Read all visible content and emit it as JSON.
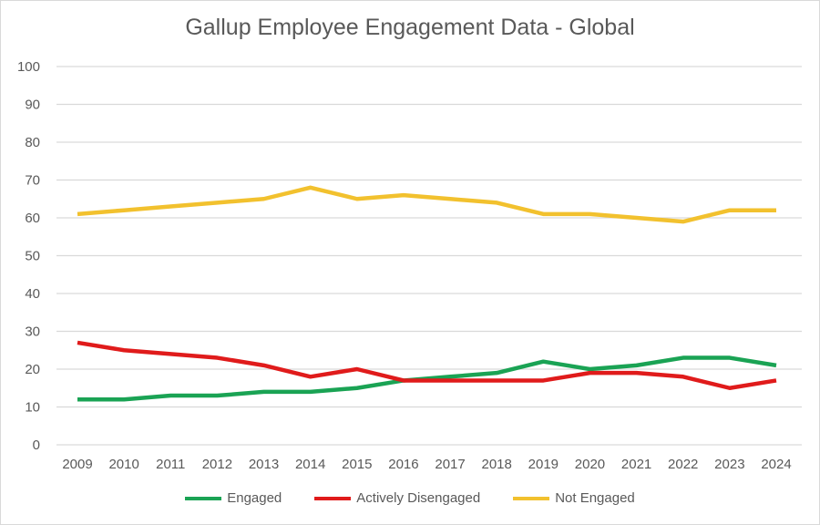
{
  "chart_data": {
    "type": "line",
    "title": "Gallup Employee Engagement Data - Global",
    "xlabel": "",
    "ylabel": "",
    "ylim": [
      0,
      100
    ],
    "yticks": [
      "0",
      "10",
      "20",
      "30",
      "40",
      "50",
      "60",
      "70",
      "80",
      "90",
      "100"
    ],
    "grid": true,
    "legend_position": "bottom",
    "categories": [
      "2009",
      "2010",
      "2011",
      "2012",
      "2013",
      "2014",
      "2015",
      "2016",
      "2017",
      "2018",
      "2019",
      "2020",
      "2021",
      "2022",
      "2023",
      "2024"
    ],
    "series": [
      {
        "name": "Engaged",
        "color": "#1aa354",
        "values": [
          12,
          12,
          13,
          13,
          14,
          14,
          15,
          17,
          18,
          19,
          22,
          20,
          21,
          23,
          23,
          21
        ]
      },
      {
        "name": "Actively Disengaged",
        "color": "#e01b1b",
        "values": [
          27,
          25,
          24,
          23,
          21,
          18,
          20,
          17,
          17,
          17,
          17,
          19,
          19,
          18,
          15,
          17
        ]
      },
      {
        "name": "Not Engaged",
        "color": "#f2c12e",
        "values": [
          61,
          62,
          63,
          64,
          65,
          68,
          65,
          66,
          65,
          64,
          61,
          61,
          60,
          59,
          62,
          62
        ]
      }
    ]
  }
}
